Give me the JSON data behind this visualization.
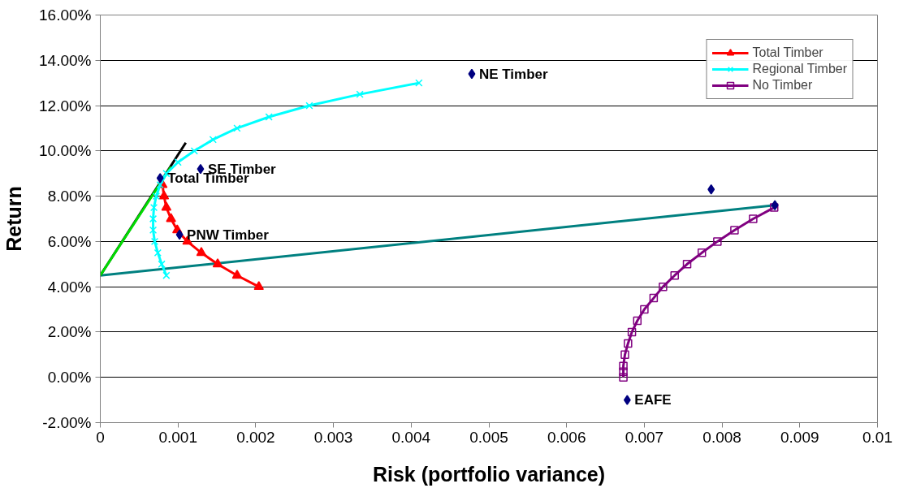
{
  "chart_data": {
    "type": "line",
    "xlabel": "Risk (portfolio variance)",
    "ylabel": "Return",
    "xlim": [
      0,
      0.01
    ],
    "ylim": [
      -2,
      16
    ],
    "xticks": [
      0,
      0.001,
      0.002,
      0.003,
      0.004,
      0.005,
      0.006,
      0.007,
      0.008,
      0.009,
      0.01
    ],
    "yticks": [
      {
        "value": -2,
        "label": "-2.00%"
      },
      {
        "value": 0,
        "label": "0.00%"
      },
      {
        "value": 2,
        "label": "2.00%"
      },
      {
        "value": 4,
        "label": "4.00%"
      },
      {
        "value": 6,
        "label": "6.00%"
      },
      {
        "value": 8,
        "label": "8.00%"
      },
      {
        "value": 10,
        "label": "10.00%"
      },
      {
        "value": 12,
        "label": "12.00%"
      },
      {
        "value": 14,
        "label": "14.00%"
      },
      {
        "value": 16,
        "label": "16.00%"
      }
    ],
    "grid": "y",
    "legend": "top right",
    "series": [
      {
        "color": "#008080",
        "marker": "none",
        "x": [
          0,
          0.00868
        ],
        "values": [
          4.5,
          7.6
        ]
      },
      {
        "color": "#000000",
        "marker": "none",
        "x": [
          0,
          0.0011
        ],
        "values": [
          4.5,
          10.36
        ]
      },
      {
        "color": "#00dd00",
        "marker": "none",
        "x": [
          0,
          0.00091
        ],
        "values": [
          4.5,
          9.3
        ]
      },
      {
        "name": "Total Timber",
        "color": "#ff0000",
        "marker": "triangle",
        "x": [
          0.00204,
          0.00176,
          0.00151,
          0.0013,
          0.00112,
          0.00099,
          0.00091,
          0.00085,
          0.00082,
          0.0008
        ],
        "values": [
          4.0,
          4.5,
          5.0,
          5.5,
          6.0,
          6.5,
          7.0,
          7.5,
          8.0,
          8.5
        ]
      },
      {
        "name": "Regional Timber",
        "color": "#00ffff",
        "marker": "cross",
        "x": [
          0.00085,
          0.00079,
          0.00074,
          0.0007,
          0.00068,
          0.00068,
          0.00069,
          0.00072,
          0.00077,
          0.00085,
          0.001,
          0.00121,
          0.00145,
          0.00176,
          0.00217,
          0.00269,
          0.00334,
          0.0041
        ],
        "values": [
          4.5,
          5.0,
          5.5,
          6.0,
          6.5,
          7.0,
          7.5,
          8.0,
          8.5,
          9.0,
          9.5,
          10.0,
          10.5,
          11.0,
          11.5,
          12.0,
          12.5,
          13.0
        ]
      },
      {
        "name": "No Timber",
        "color": "#800080",
        "marker": "square",
        "x": [
          0.00673,
          0.00673,
          0.00673,
          0.00675,
          0.00679,
          0.00684,
          0.00691,
          0.007,
          0.00712,
          0.00724,
          0.00739,
          0.00755,
          0.00774,
          0.00794,
          0.00816,
          0.0084,
          0.00867
        ],
        "values": [
          0,
          0.25,
          0.5,
          1.0,
          1.5,
          2.0,
          2.5,
          3.0,
          3.5,
          4.0,
          4.5,
          5.0,
          5.5,
          6.0,
          6.5,
          7.0,
          7.5
        ]
      },
      {
        "type": "scatter",
        "color": "#000080",
        "marker": "diamond",
        "x": [
          0.00478,
          0.00129,
          0.00077,
          0.00102,
          0.00786,
          0.00868,
          0.00678
        ],
        "values": [
          13.4,
          9.2,
          8.8,
          6.3,
          8.3,
          7.6,
          -1.0
        ]
      }
    ],
    "annotations": [
      {
        "text": "NE Timber",
        "x": 0.00478,
        "y": 13.4
      },
      {
        "text": "SE Timber",
        "x": 0.00129,
        "y": 9.2
      },
      {
        "text": "Total Timber",
        "x": 0.00077,
        "y": 8.8
      },
      {
        "text": "PNW Timber",
        "x": 0.00102,
        "y": 6.3
      },
      {
        "text": "EAFE",
        "x": 0.00678,
        "y": -1.0
      }
    ]
  }
}
